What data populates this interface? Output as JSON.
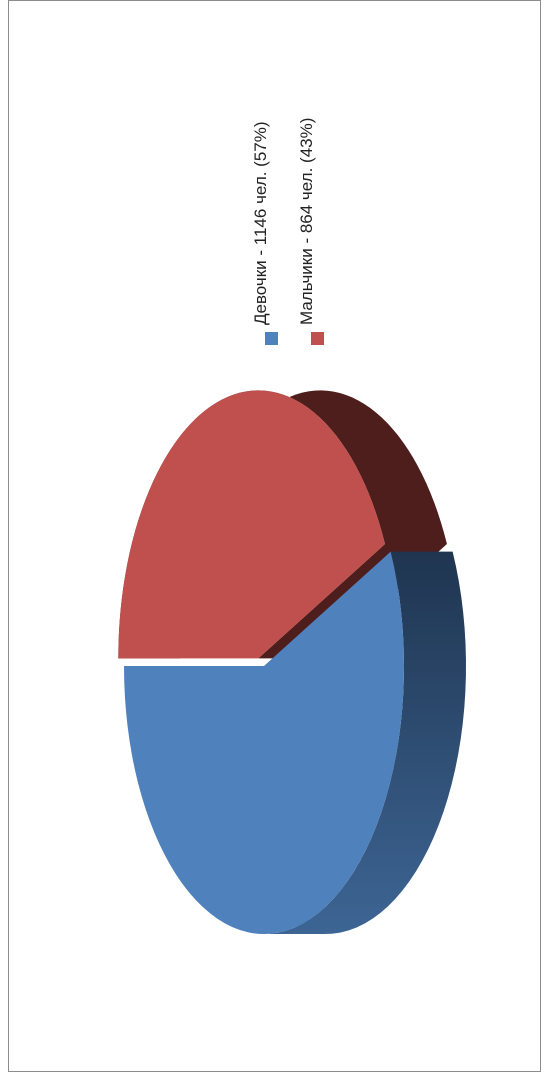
{
  "chart_data": {
    "type": "pie",
    "title": "",
    "legend_position": "right",
    "rotation": "rotated 90 degrees counter-clockwise, 3D exploded",
    "slices": [
      {
        "label": "Девочки - 1146 чел. (57%)",
        "value": 1146,
        "percent": 57,
        "color": "#4F81BD",
        "side_color": "#1F3550"
      },
      {
        "label": "Мальчики - 864 чел. (43%)",
        "value": 864,
        "percent": 43,
        "color": "#C0504D",
        "side_color": "#4E1E1D"
      }
    ]
  }
}
